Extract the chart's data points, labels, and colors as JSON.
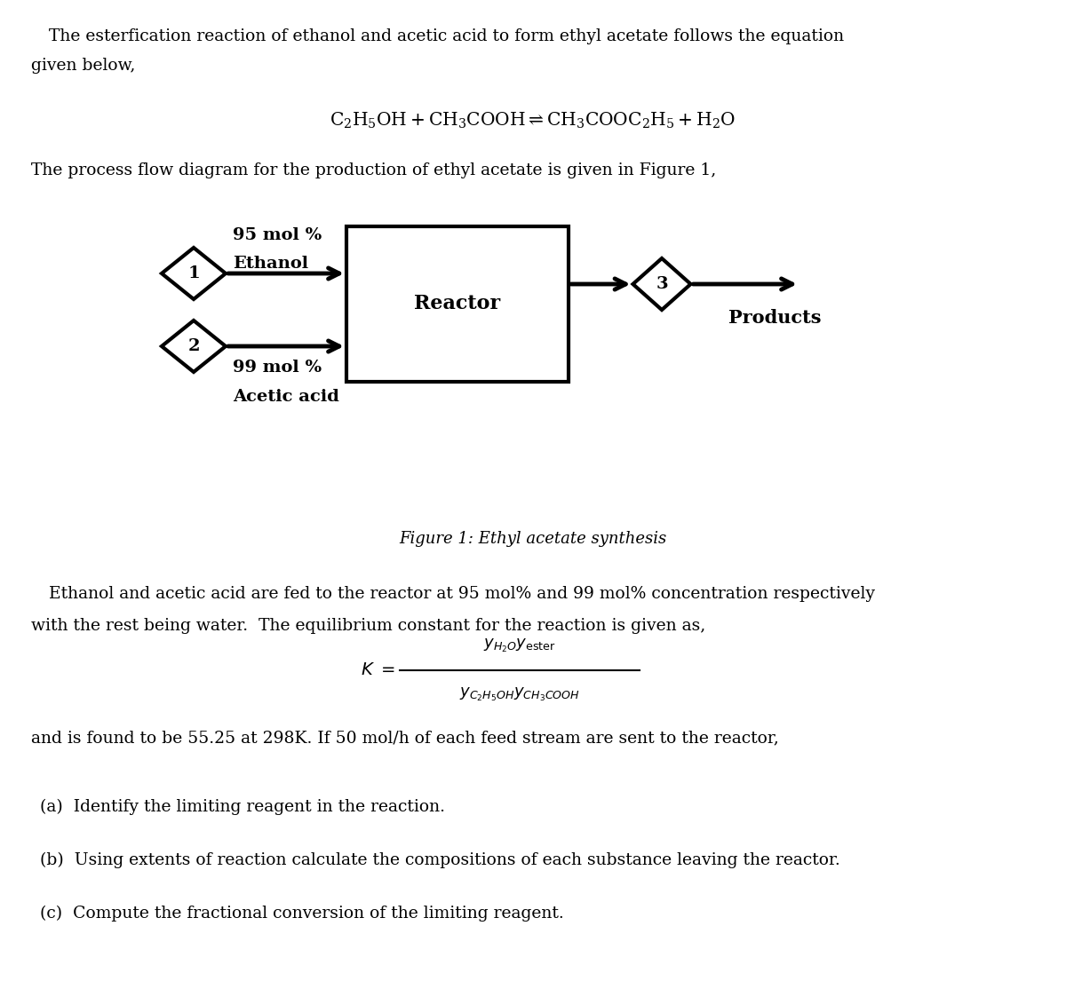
{
  "bg_color": "#ffffff",
  "text_color": "#000000",
  "para1_line1": "The esterfication reaction of ethanol and acetic acid to form ethyl acetate follows the equation",
  "para1_line2": "given below,",
  "para2": "The process flow diagram for the production of ethyl acetate is given in Figure 1,",
  "label1": "95 mol %",
  "label1b": "Ethanol",
  "label2": "99 mol %",
  "label2b": "Acetic acid",
  "reactor_label": "Reactor",
  "stream1": "1",
  "stream2": "2",
  "stream3": "3",
  "products_label": "Products",
  "figure_caption": "Figure 1: Ethyl acetate synthesis",
  "para3_line1": "Ethanol and acetic acid are fed to the reactor at 95 mol% and 99 mol% concentration respectively",
  "para3_line2": "with the rest being water.  The equilibrium constant for the reaction is given as,",
  "para4": "and is found to be 55.25 at 298K. If 50 mol/h of each feed stream are sent to the reactor,",
  "qa": "(a)  Identify the limiting reagent in the reaction.",
  "qb": "(b)  Using extents of reaction calculate the compositions of each substance leaving the reactor.",
  "qc": "(c)  Compute the fractional conversion of the limiting reagent.",
  "font_size_body": 13.5,
  "font_size_eq": 14,
  "font_size_diagram": 14,
  "font_size_bold": 14
}
